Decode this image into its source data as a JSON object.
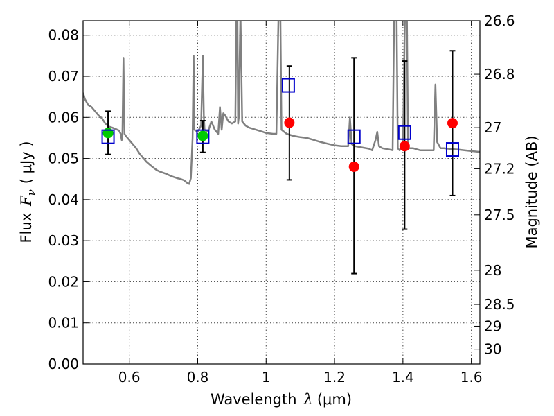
{
  "chart_data": {
    "type": "scatter",
    "title": "",
    "xlabel": "Wavelength",
    "xlabel_symbol": "λ",
    "xlabel_unit": "(μm)",
    "ylabel": "Flux",
    "ylabel_symbol": "F",
    "ylabel_subscript": "ν",
    "ylabel_unit": "( μJy )",
    "y2label": "Magnitude (AB)",
    "xlim": [
      0.465,
      1.625
    ],
    "ylim": [
      0.0,
      0.0835
    ],
    "grid": true,
    "x_ticks": [
      0.6,
      0.8,
      1.0,
      1.2,
      1.4,
      1.6
    ],
    "x_tick_labels": [
      "0.6",
      "0.8",
      "1",
      "1.2",
      "1.4",
      "1.6"
    ],
    "y_ticks": [
      0.0,
      0.01,
      0.02,
      0.03,
      0.04,
      0.05,
      0.06,
      0.07,
      0.08
    ],
    "y_tick_labels": [
      "0.00",
      "0.01",
      "0.02",
      "0.03",
      "0.04",
      "0.05",
      "0.06",
      "0.07",
      "0.08"
    ],
    "y2_ticks": [
      {
        "label": "26.6",
        "flux": 0.0835
      },
      {
        "label": "26.8",
        "flux": 0.0705
      },
      {
        "label": "27",
        "flux": 0.0575
      },
      {
        "label": "27.2",
        "flux": 0.0475
      },
      {
        "label": "27.5",
        "flux": 0.0363
      },
      {
        "label": "28",
        "flux": 0.0228
      },
      {
        "label": "28.5",
        "flux": 0.0145
      },
      {
        "label": "29",
        "flux": 0.0092
      },
      {
        "label": "30",
        "flux": 0.0036
      }
    ],
    "series": [
      {
        "name": "model spectrum",
        "color": "#808080",
        "style": "line",
        "points": [
          [
            0.465,
            0.066
          ],
          [
            0.47,
            0.0645
          ],
          [
            0.48,
            0.063
          ],
          [
            0.49,
            0.0625
          ],
          [
            0.5,
            0.0615
          ],
          [
            0.51,
            0.0605
          ],
          [
            0.52,
            0.0598
          ],
          [
            0.53,
            0.0585
          ],
          [
            0.54,
            0.0578
          ],
          [
            0.55,
            0.0575
          ],
          [
            0.56,
            0.0572
          ],
          [
            0.57,
            0.0568
          ],
          [
            0.575,
            0.056
          ],
          [
            0.578,
            0.0545
          ],
          [
            0.58,
            0.0555
          ],
          [
            0.583,
            0.0745
          ],
          [
            0.586,
            0.056
          ],
          [
            0.59,
            0.0555
          ],
          [
            0.6,
            0.0545
          ],
          [
            0.61,
            0.0535
          ],
          [
            0.62,
            0.0525
          ],
          [
            0.63,
            0.0512
          ],
          [
            0.64,
            0.0502
          ],
          [
            0.65,
            0.0492
          ],
          [
            0.66,
            0.0485
          ],
          [
            0.67,
            0.0478
          ],
          [
            0.68,
            0.0472
          ],
          [
            0.69,
            0.0468
          ],
          [
            0.7,
            0.0465
          ],
          [
            0.71,
            0.0462
          ],
          [
            0.72,
            0.0458
          ],
          [
            0.73,
            0.0455
          ],
          [
            0.74,
            0.0452
          ],
          [
            0.75,
            0.045
          ],
          [
            0.76,
            0.0447
          ],
          [
            0.77,
            0.044
          ],
          [
            0.775,
            0.0438
          ],
          [
            0.78,
            0.0452
          ],
          [
            0.785,
            0.055
          ],
          [
            0.788,
            0.075
          ],
          [
            0.79,
            0.057
          ],
          [
            0.8,
            0.0565
          ],
          [
            0.81,
            0.058
          ],
          [
            0.815,
            0.075
          ],
          [
            0.818,
            0.06
          ],
          [
            0.82,
            0.057
          ],
          [
            0.83,
            0.0565
          ],
          [
            0.84,
            0.059
          ],
          [
            0.85,
            0.057
          ],
          [
            0.86,
            0.056
          ],
          [
            0.865,
            0.0625
          ],
          [
            0.87,
            0.057
          ],
          [
            0.875,
            0.061
          ],
          [
            0.88,
            0.0605
          ],
          [
            0.89,
            0.059
          ],
          [
            0.9,
            0.0585
          ],
          [
            0.91,
            0.059
          ],
          [
            0.915,
            0.1
          ],
          [
            0.918,
            0.0585
          ],
          [
            0.92,
            0.06
          ],
          [
            0.925,
            0.086
          ],
          [
            0.93,
            0.059
          ],
          [
            0.94,
            0.058
          ],
          [
            0.95,
            0.0575
          ],
          [
            0.97,
            0.057
          ],
          [
            0.99,
            0.0565
          ],
          [
            1.0,
            0.0562
          ],
          [
            1.02,
            0.056
          ],
          [
            1.03,
            0.056
          ],
          [
            1.035,
            0.08
          ],
          [
            1.04,
            0.1
          ],
          [
            1.045,
            0.057
          ],
          [
            1.06,
            0.056
          ],
          [
            1.08,
            0.0555
          ],
          [
            1.1,
            0.0552
          ],
          [
            1.12,
            0.055
          ],
          [
            1.14,
            0.0545
          ],
          [
            1.16,
            0.054
          ],
          [
            1.18,
            0.0536
          ],
          [
            1.2,
            0.0532
          ],
          [
            1.22,
            0.053
          ],
          [
            1.24,
            0.053
          ],
          [
            1.245,
            0.06
          ],
          [
            1.25,
            0.0535
          ],
          [
            1.26,
            0.053
          ],
          [
            1.28,
            0.0527
          ],
          [
            1.3,
            0.0524
          ],
          [
            1.31,
            0.052
          ],
          [
            1.32,
            0.0545
          ],
          [
            1.325,
            0.0565
          ],
          [
            1.33,
            0.053
          ],
          [
            1.34,
            0.0525
          ],
          [
            1.36,
            0.0522
          ],
          [
            1.37,
            0.052
          ],
          [
            1.375,
            0.09
          ],
          [
            1.38,
            0.1
          ],
          [
            1.385,
            0.0525
          ],
          [
            1.39,
            0.052
          ],
          [
            1.4,
            0.0525
          ],
          [
            1.405,
            0.08
          ],
          [
            1.41,
            0.1
          ],
          [
            1.415,
            0.0525
          ],
          [
            1.43,
            0.0525
          ],
          [
            1.45,
            0.052
          ],
          [
            1.47,
            0.052
          ],
          [
            1.49,
            0.052
          ],
          [
            1.495,
            0.068
          ],
          [
            1.5,
            0.054
          ],
          [
            1.51,
            0.0525
          ],
          [
            1.52,
            0.0525
          ],
          [
            1.54,
            0.0523
          ],
          [
            1.56,
            0.0522
          ],
          [
            1.58,
            0.052
          ],
          [
            1.6,
            0.0518
          ],
          [
            1.625,
            0.0516
          ]
        ]
      },
      {
        "name": "observed (green)",
        "color": "#00cc00",
        "style": "filled-circle",
        "points": [
          {
            "x": 0.538,
            "y": 0.0562,
            "yerr_low": 0.051,
            "yerr_high": 0.0615
          },
          {
            "x": 0.815,
            "y": 0.0555,
            "yerr_low": 0.0515,
            "yerr_high": 0.0592
          }
        ]
      },
      {
        "name": "observed (red)",
        "color": "#ff0000",
        "style": "filled-circle",
        "points": [
          {
            "x": 1.068,
            "y": 0.0587,
            "yerr_low": 0.0448,
            "yerr_high": 0.0725
          },
          {
            "x": 1.257,
            "y": 0.048,
            "yerr_low": 0.022,
            "yerr_high": 0.0745
          },
          {
            "x": 1.405,
            "y": 0.053,
            "yerr_low": 0.0328,
            "yerr_high": 0.0737
          },
          {
            "x": 1.545,
            "y": 0.0586,
            "yerr_low": 0.041,
            "yerr_high": 0.0762
          }
        ]
      },
      {
        "name": "model photometry (blue squares)",
        "color": "#0000cc",
        "style": "open-square",
        "points": [
          {
            "x": 0.538,
            "y": 0.0553
          },
          {
            "x": 0.815,
            "y": 0.0553
          },
          {
            "x": 1.065,
            "y": 0.0678
          },
          {
            "x": 1.257,
            "y": 0.0553
          },
          {
            "x": 1.405,
            "y": 0.0563
          },
          {
            "x": 1.545,
            "y": 0.0522
          }
        ]
      }
    ]
  }
}
